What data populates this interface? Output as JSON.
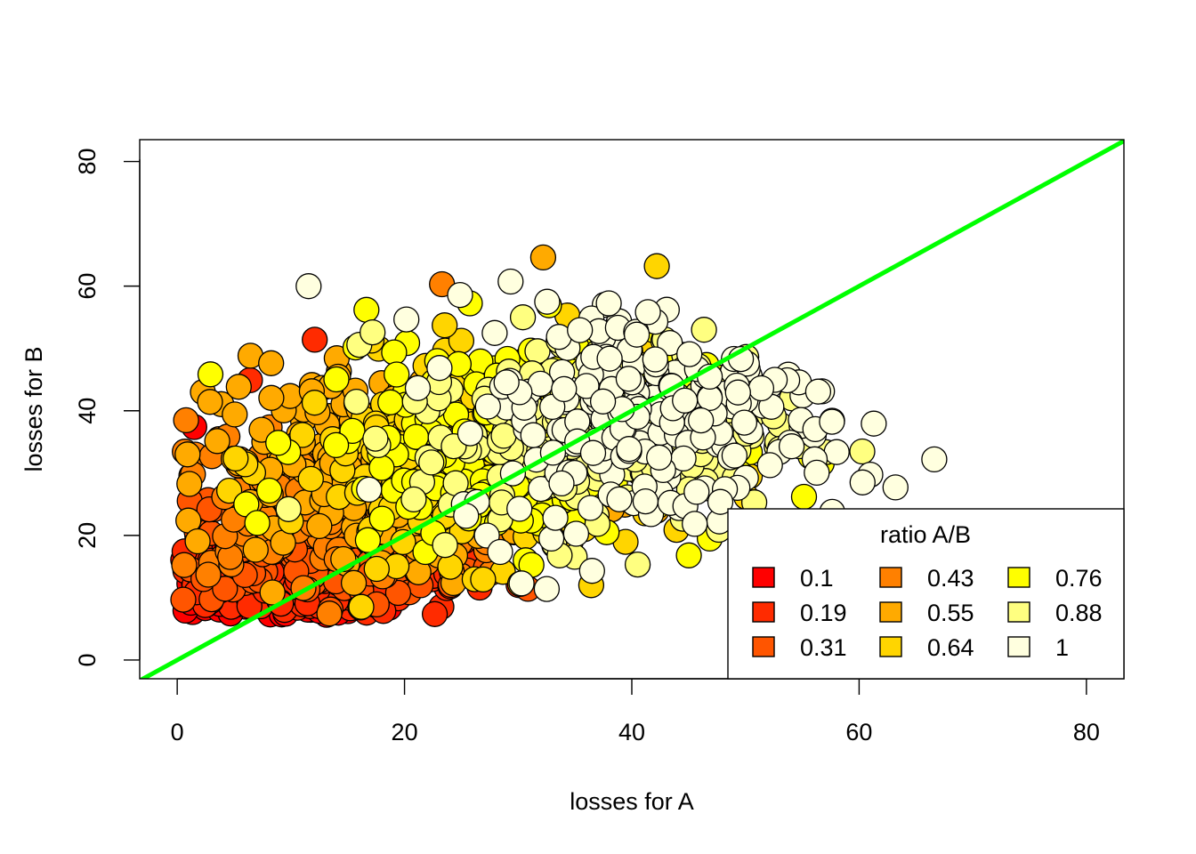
{
  "chart_data": {
    "type": "scatter",
    "title": "",
    "xlabel": "losses for A",
    "ylabel": "losses for B",
    "xlim": [
      -3.3,
      83.3
    ],
    "ylim": [
      -3.0,
      83.5
    ],
    "xticks": [
      0,
      20,
      40,
      60,
      80
    ],
    "yticks": [
      0,
      20,
      40,
      60,
      80
    ],
    "reference_line": {
      "type": "y=x",
      "color": "#00ff00",
      "intercept": 0,
      "slope": 1
    },
    "color_scale": {
      "title": "ratio A/B",
      "levels": [
        {
          "label": "0.1",
          "color": "#ff0000"
        },
        {
          "label": "0.19",
          "color": "#ff2b00"
        },
        {
          "label": "0.31",
          "color": "#ff5500"
        },
        {
          "label": "0.43",
          "color": "#ff8000"
        },
        {
          "label": "0.55",
          "color": "#ffaa00"
        },
        {
          "label": "0.64",
          "color": "#ffd500"
        },
        {
          "label": "0.76",
          "color": "#ffff00"
        },
        {
          "label": "0.88",
          "color": "#ffff80"
        },
        {
          "label": "1",
          "color": "#ffffdf"
        }
      ]
    },
    "legend_position": "bottom-right",
    "point_count_approx": 2000,
    "notable_points": [
      {
        "x": 42.2,
        "y": 63.2
      },
      {
        "x": 32.2,
        "y": 64.6
      },
      {
        "x": 63.2,
        "y": 27.7
      },
      {
        "x": 30.3,
        "y": 12.3
      },
      {
        "x": 6.4,
        "y": 44.9
      },
      {
        "x": 1.5,
        "y": 37.4
      },
      {
        "x": 12.1,
        "y": 51.4
      },
      {
        "x": 23.3,
        "y": 60.3
      },
      {
        "x": 49.6,
        "y": 48.3
      },
      {
        "x": 60.3,
        "y": 28.5
      }
    ],
    "clusters": [
      {
        "level": 0,
        "count": 160,
        "cx": 7,
        "cy": 10,
        "sx": 5.5,
        "sy": 2.8
      },
      {
        "level": 1,
        "count": 200,
        "cx": 12,
        "cy": 13,
        "sx": 6.5,
        "sy": 3.5
      },
      {
        "level": 2,
        "count": 240,
        "cx": 13,
        "cy": 19,
        "sx": 7.5,
        "sy": 4.5
      },
      {
        "level": 3,
        "count": 260,
        "cx": 15,
        "cy": 26,
        "sx": 8.5,
        "sy": 6.5
      },
      {
        "level": 4,
        "count": 240,
        "cx": 20,
        "cy": 32,
        "sx": 8.5,
        "sy": 7.5
      },
      {
        "level": 5,
        "count": 220,
        "cx": 27,
        "cy": 32,
        "sx": 8.5,
        "sy": 8.0
      },
      {
        "level": 6,
        "count": 220,
        "cx": 30,
        "cy": 35,
        "sx": 9.0,
        "sy": 8.5
      },
      {
        "level": 7,
        "count": 220,
        "cx": 38,
        "cy": 37,
        "sx": 8.5,
        "sy": 8.5
      },
      {
        "level": 8,
        "count": 240,
        "cx": 42,
        "cy": 40,
        "sx": 9.0,
        "sy": 9.5
      }
    ]
  }
}
